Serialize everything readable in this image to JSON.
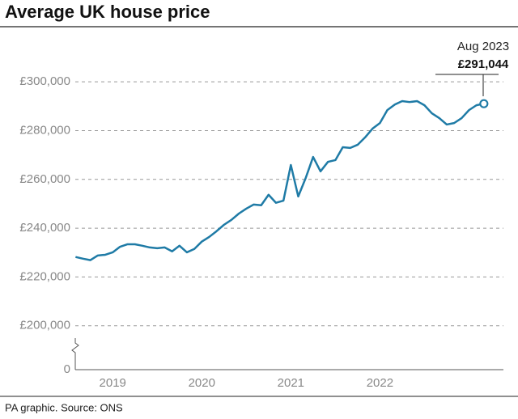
{
  "chart_data": {
    "type": "line",
    "title": "Average UK house price",
    "source": "PA graphic. Source: ONS",
    "annotation": {
      "label": "Aug 2023",
      "value_label": "£291,044"
    },
    "x": [
      2019.083,
      2019.167,
      2019.25,
      2019.333,
      2019.417,
      2019.5,
      2019.583,
      2019.667,
      2019.75,
      2019.833,
      2019.917,
      2020.0,
      2020.083,
      2020.167,
      2020.25,
      2020.333,
      2020.417,
      2020.5,
      2020.583,
      2020.667,
      2020.75,
      2020.833,
      2020.917,
      2021.0,
      2021.083,
      2021.167,
      2021.25,
      2021.333,
      2021.417,
      2021.5,
      2021.583,
      2021.667,
      2021.75,
      2021.833,
      2021.917,
      2022.0,
      2022.083,
      2022.167,
      2022.25,
      2022.333,
      2022.417,
      2022.5,
      2022.583,
      2022.667,
      2022.75,
      2022.833,
      2022.917,
      2023.0,
      2023.083,
      2023.167,
      2023.25,
      2023.333,
      2023.417,
      2023.5,
      2023.583,
      2023.667
    ],
    "series": [
      {
        "name": "Average UK house price",
        "color": "#1f7ba6",
        "values": [
          228200,
          227500,
          226900,
          228800,
          229100,
          230100,
          232400,
          233400,
          233400,
          232800,
          232100,
          231800,
          232100,
          230500,
          232800,
          230100,
          231500,
          234500,
          236400,
          238800,
          241400,
          243400,
          246000,
          248000,
          249700,
          249400,
          253700,
          250400,
          251300,
          265900,
          253000,
          260600,
          269200,
          263300,
          267200,
          267900,
          273200,
          272900,
          274200,
          277200,
          280800,
          283100,
          288400,
          290700,
          292100,
          291700,
          292100,
          290400,
          287100,
          285100,
          282500,
          283100,
          285100,
          288400,
          290400,
          291044
        ]
      }
    ],
    "xlim": [
      2019.08,
      2024.05
    ],
    "xticks": [
      {
        "value": 2019.5,
        "label": "2019"
      },
      {
        "value": 2020.5,
        "label": "2020"
      },
      {
        "value": 2021.5,
        "label": "2021"
      },
      {
        "value": 2022.5,
        "label": "2022"
      }
    ],
    "ylim": [
      182000,
      310000
    ],
    "yticks": [
      0,
      {
        "value": 200000,
        "label": "£200,000"
      },
      {
        "value": 220000,
        "label": "£220,000"
      },
      {
        "value": 240000,
        "label": "£240,000"
      },
      {
        "value": 260000,
        "label": "£260,000"
      },
      {
        "value": 280000,
        "label": "£280,000"
      },
      {
        "value": 300000,
        "label": "£300,000"
      }
    ],
    "grid": true
  }
}
